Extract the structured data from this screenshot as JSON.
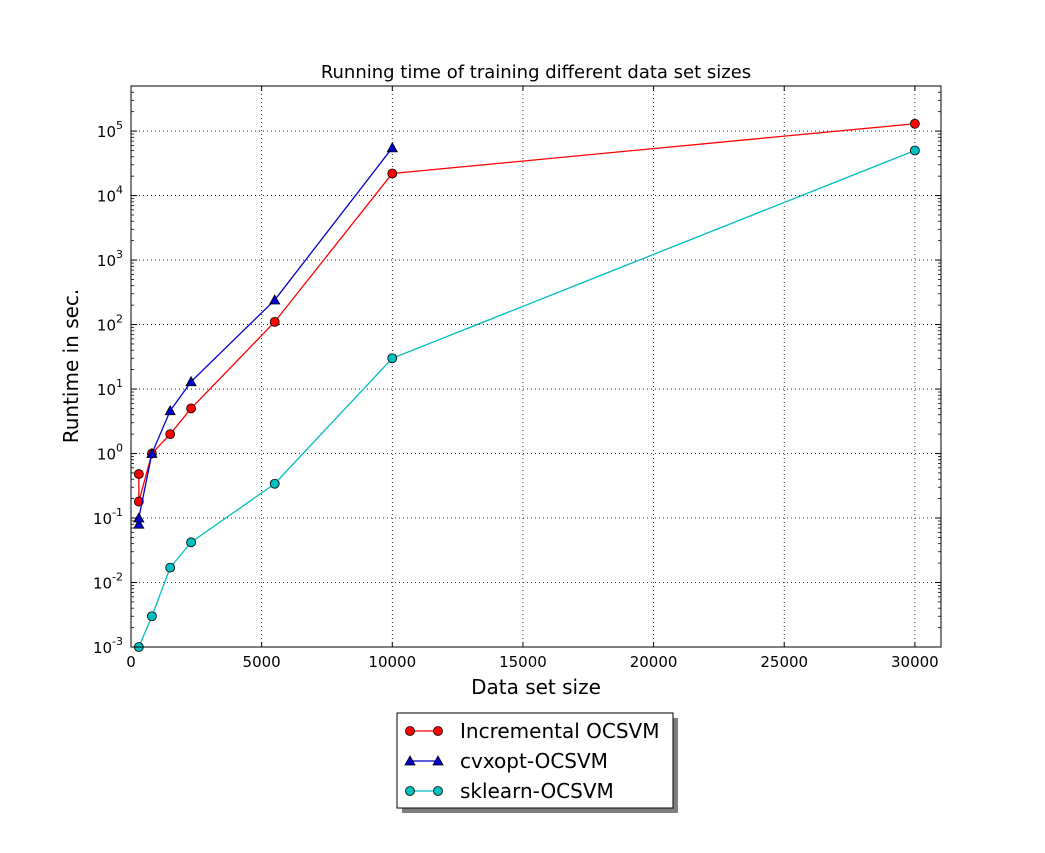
{
  "chart_data": {
    "type": "line",
    "title": "Running time of training different data set sizes",
    "xlabel": "Data set size",
    "ylabel": "Runtime in sec.",
    "xlim": [
      0,
      31000
    ],
    "ylim": [
      0.001,
      500000
    ],
    "yscale": "log",
    "grid": true,
    "legend_position": "below-plot",
    "x_ticks": [
      "0",
      "5000",
      "10000",
      "15000",
      "20000",
      "25000",
      "30000"
    ],
    "x_tick_values": [
      0,
      5000,
      10000,
      15000,
      20000,
      25000,
      30000
    ],
    "y_ticks": [
      {
        "value": 0.001,
        "base": "10",
        "exp": "-3"
      },
      {
        "value": 0.01,
        "base": "10",
        "exp": "-2"
      },
      {
        "value": 0.1,
        "base": "10",
        "exp": "-1"
      },
      {
        "value": 1,
        "base": "10",
        "exp": "0"
      },
      {
        "value": 10,
        "base": "10",
        "exp": "1"
      },
      {
        "value": 100,
        "base": "10",
        "exp": "2"
      },
      {
        "value": 1000,
        "base": "10",
        "exp": "3"
      },
      {
        "value": 10000,
        "base": "10",
        "exp": "4"
      },
      {
        "value": 100000,
        "base": "10",
        "exp": "5"
      }
    ],
    "series": [
      {
        "name": "Incremental OCSVM",
        "color": "#ff0000",
        "marker": "circle",
        "x": [
          300,
          300,
          800,
          1500,
          2300,
          5500,
          10000,
          30000
        ],
        "y": [
          0.48,
          0.18,
          1.0,
          2.0,
          5.0,
          110,
          22000,
          130000
        ]
      },
      {
        "name": "cvxopt-OCSVM",
        "color": "#0000cc",
        "marker": "triangle",
        "x": [
          300,
          300,
          800,
          1500,
          2300,
          5500,
          10000
        ],
        "y": [
          0.08,
          0.1,
          1.0,
          4.6,
          13,
          240,
          55000
        ]
      },
      {
        "name": "sklearn-OCSVM",
        "color": "#00bfbf",
        "marker": "circle",
        "x": [
          300,
          800,
          1500,
          2300,
          5500,
          10000,
          30000
        ],
        "y": [
          0.001,
          0.003,
          0.017,
          0.042,
          0.34,
          30,
          50000
        ]
      }
    ]
  }
}
